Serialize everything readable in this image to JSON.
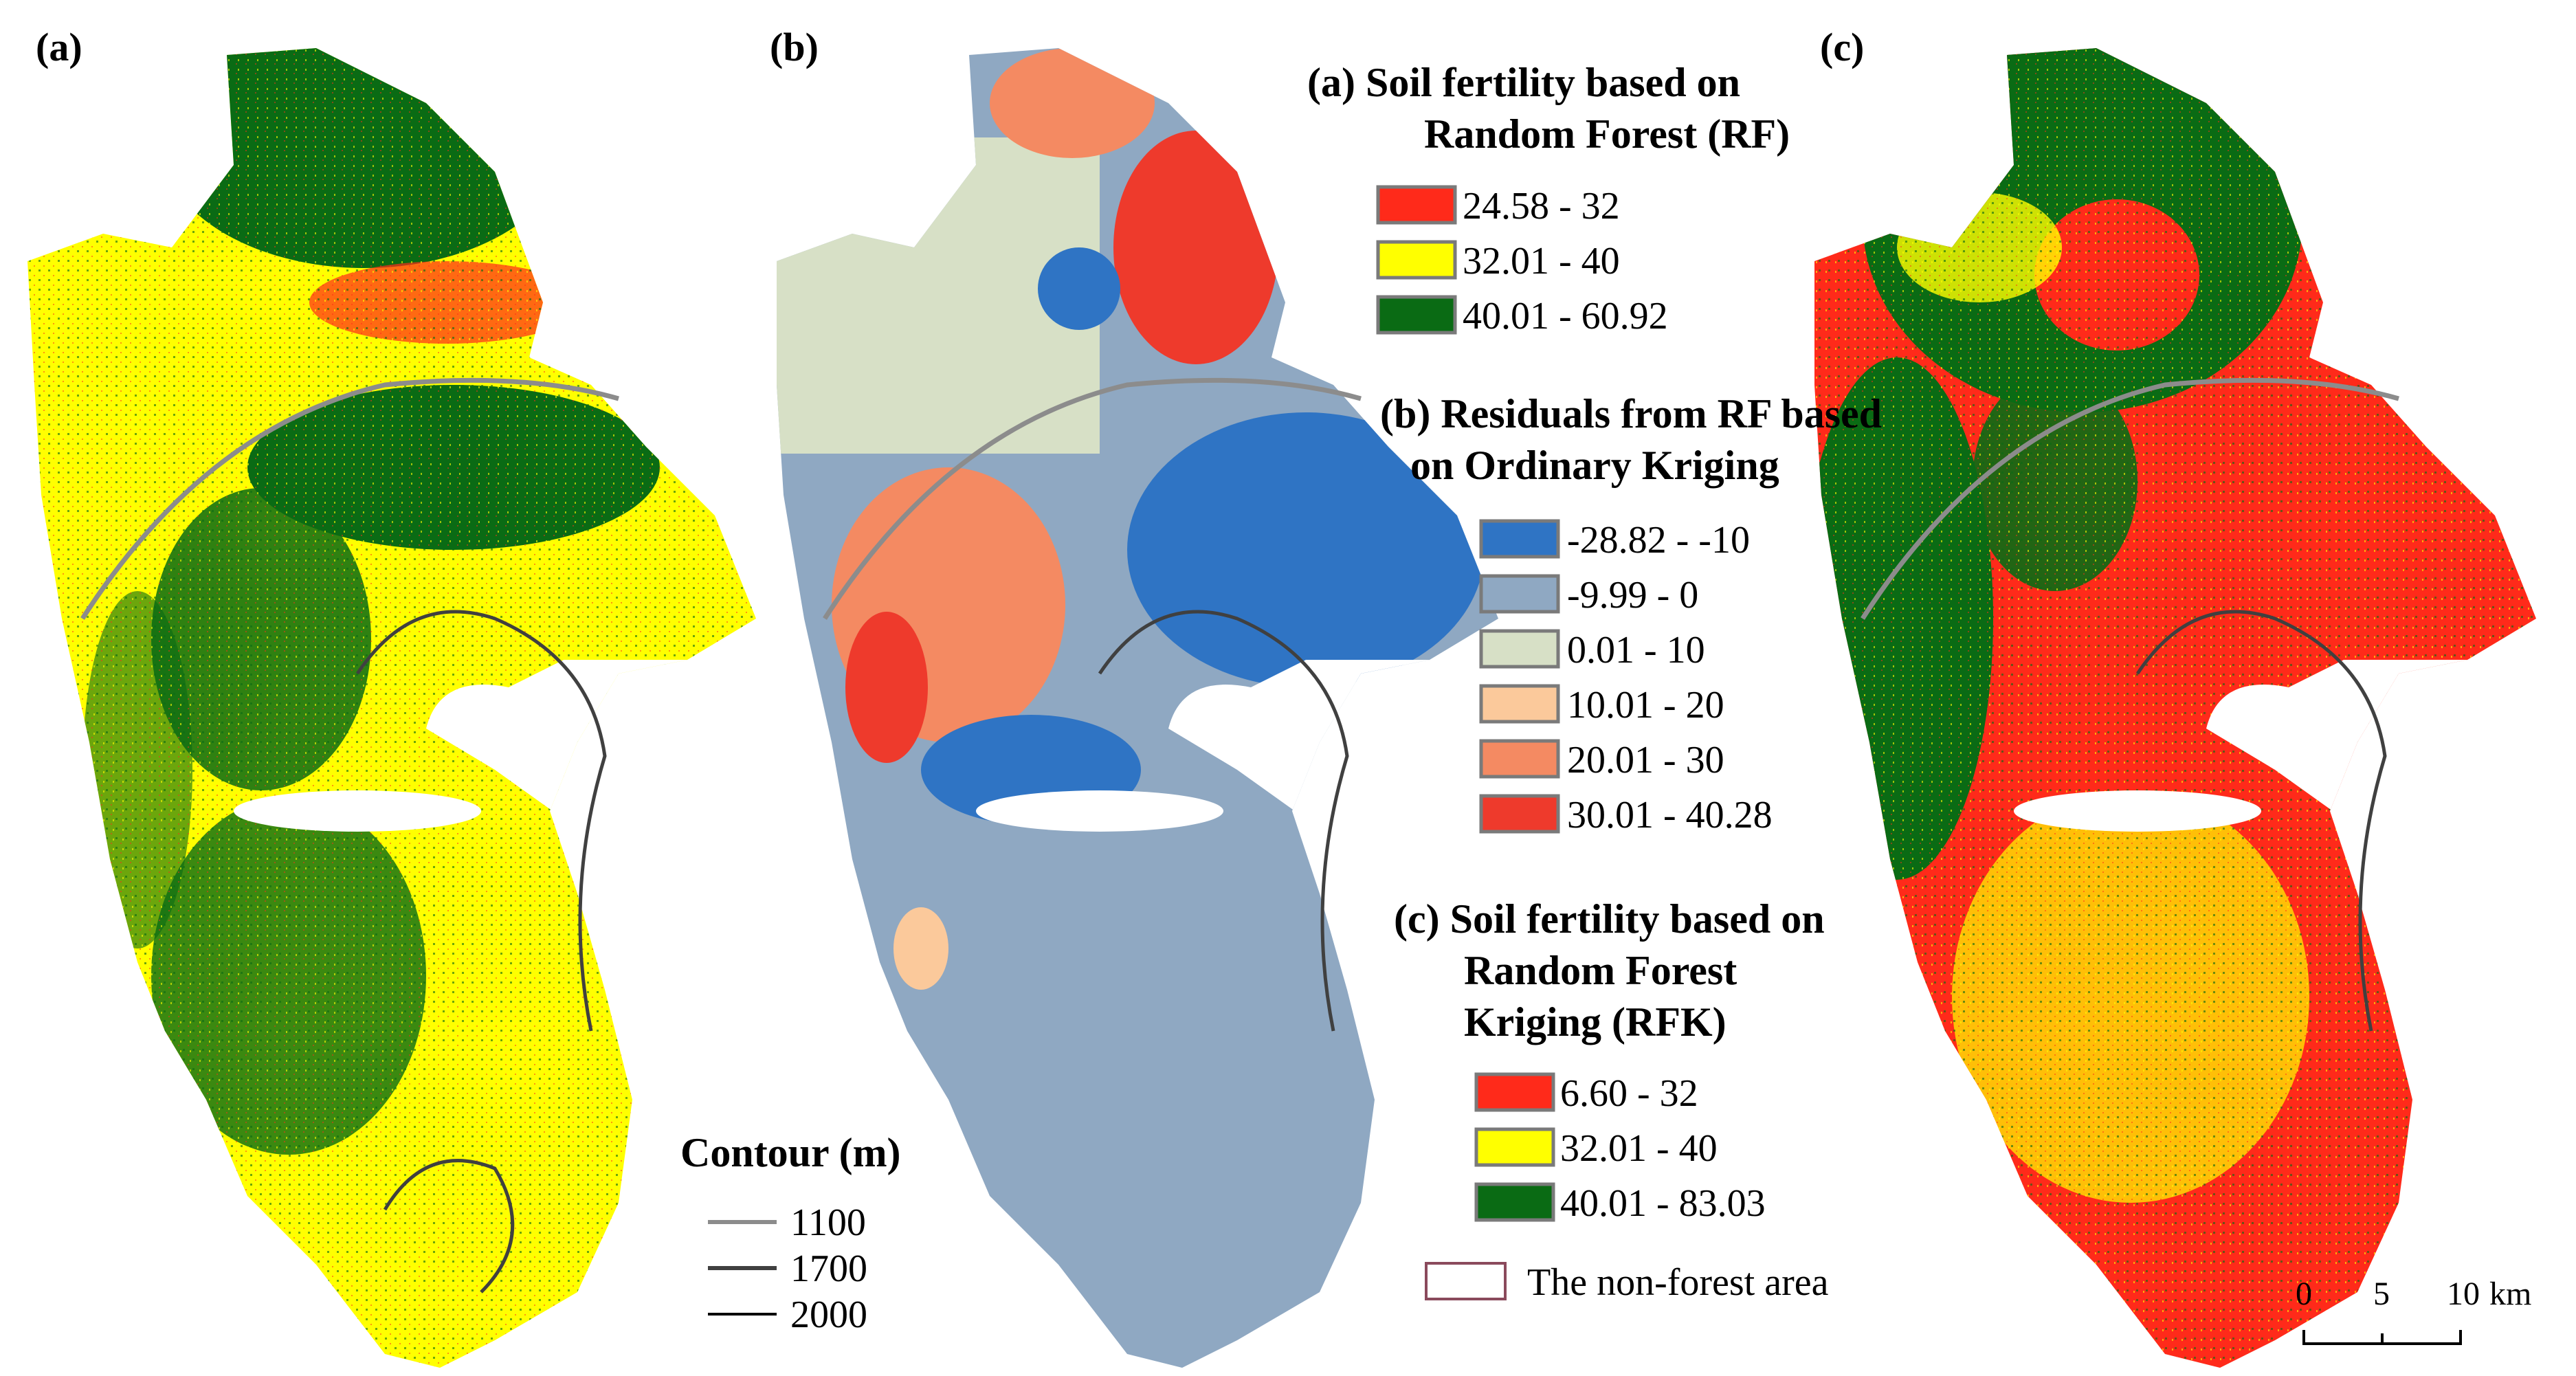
{
  "panels": {
    "a": {
      "label": "(a)"
    },
    "b": {
      "label": "(b)"
    },
    "c": {
      "label": "(c)"
    }
  },
  "legends": {
    "rf": {
      "title_line1": "(a) Soil fertility based on",
      "title_line2": "Random Forest (RF)",
      "classes": [
        {
          "label": "24.58 - 32",
          "color": "#ff2a1a"
        },
        {
          "label": "32.01 - 40",
          "color": "#ffff00"
        },
        {
          "label": "40.01 - 60.92",
          "color": "#0a6b14"
        }
      ]
    },
    "residuals": {
      "title_line1": "(b) Residuals from RF based",
      "title_line2": "on Ordinary Kriging",
      "classes": [
        {
          "label": "-28.82 - -10",
          "color": "#2f74c4"
        },
        {
          "label": "-9.99 - 0",
          "color": "#8fa8c2"
        },
        {
          "label": "0.01 - 10",
          "color": "#d7e0c6"
        },
        {
          "label": "10.01 - 20",
          "color": "#fbc99b"
        },
        {
          "label": "20.01 - 30",
          "color": "#f48a62"
        },
        {
          "label": "30.01 - 40.28",
          "color": "#ee3a2c"
        }
      ]
    },
    "rfk": {
      "title_line1": "(c) Soil fertility based on",
      "title_line2": "Random Forest",
      "title_line3": "Kriging (RFK)",
      "classes": [
        {
          "label": "6.60 - 32",
          "color": "#ff2a1a"
        },
        {
          "label": "32.01 - 40",
          "color": "#ffff00"
        },
        {
          "label": "40.01 - 83.03",
          "color": "#0a6b14"
        }
      ]
    },
    "contour": {
      "title": "Contour (m)",
      "items": [
        {
          "label": "1100",
          "color": "#8c8c8c"
        },
        {
          "label": "1700",
          "color": "#404040"
        },
        {
          "label": "2000",
          "color": "#000000"
        }
      ]
    },
    "non_forest": {
      "label": "The non-forest area",
      "color": "#8a4a5c"
    }
  },
  "scale_bar": {
    "ticks": [
      "0",
      "5",
      "10"
    ],
    "unit": "km"
  }
}
